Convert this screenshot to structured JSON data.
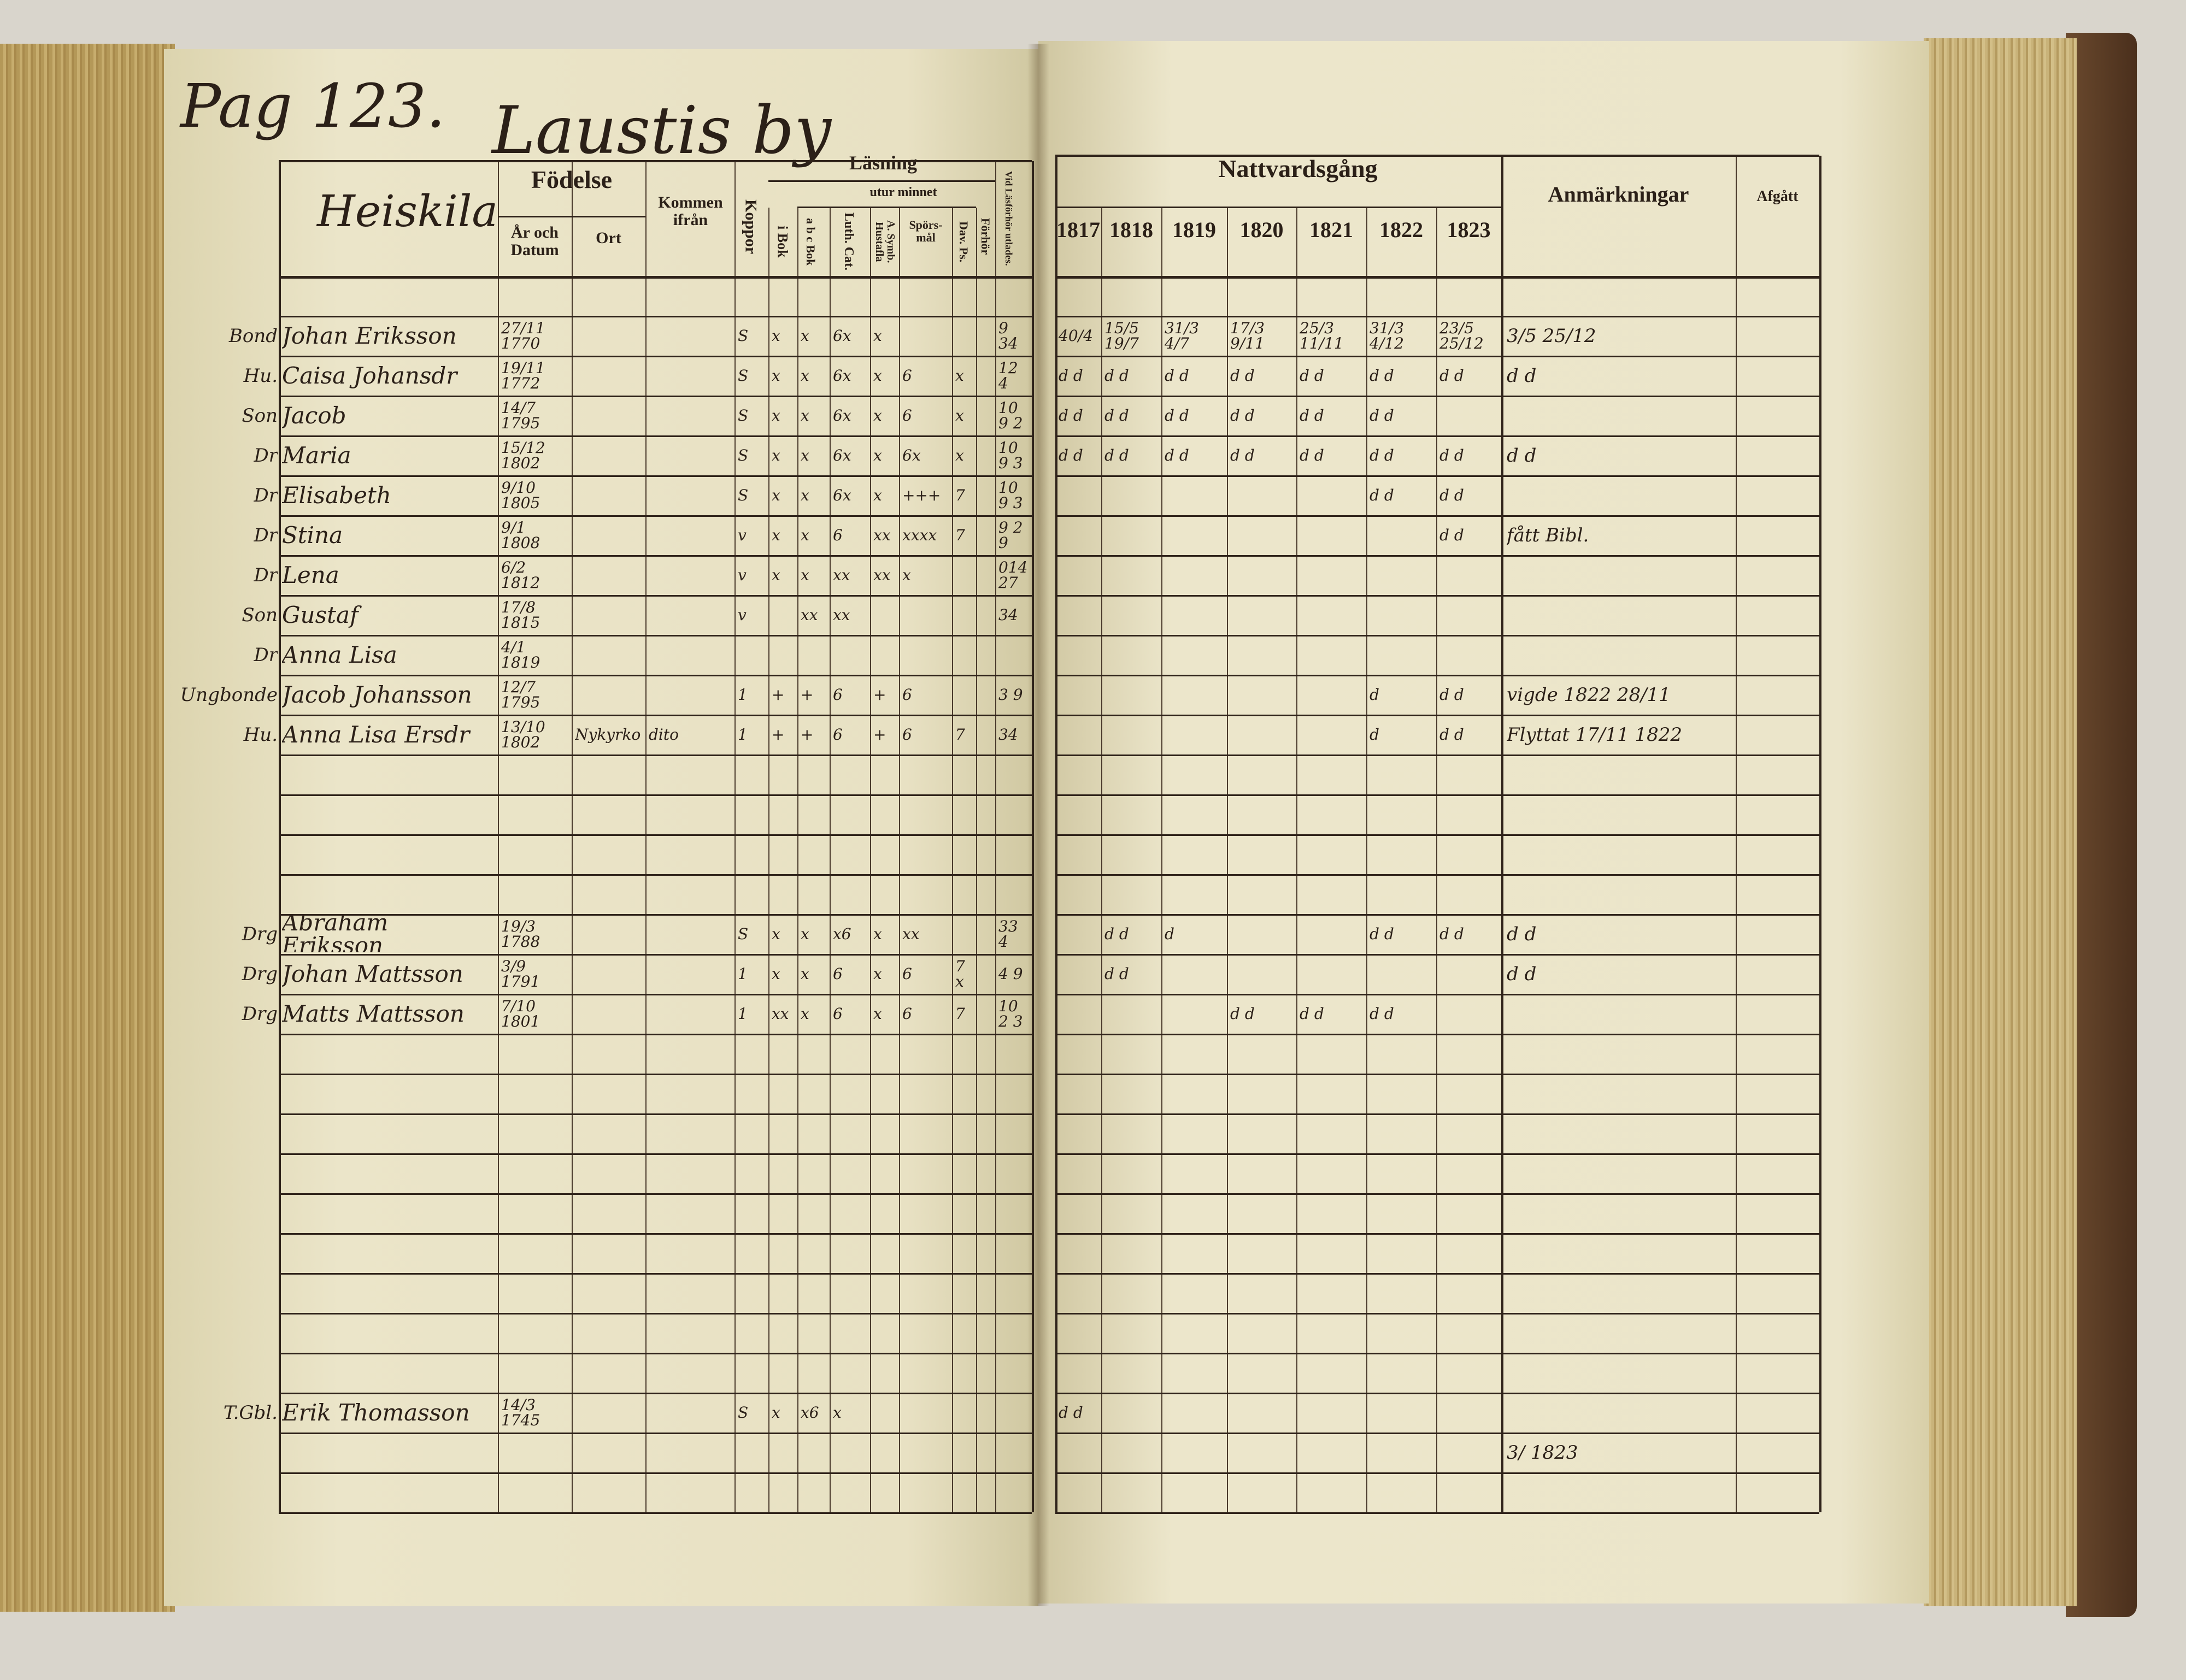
{
  "left_page": {
    "page_label": "Pag 123.",
    "village": "Laustis by",
    "headers": {
      "name": "Heiskila",
      "fodelse": "Födelse",
      "ar_och_datum": "År och Datum",
      "ort": "Ort",
      "kommen": "Kommen ifrån",
      "koppor": "Koppor",
      "lasning": "Läsning",
      "utur_minnet": "utur minnet",
      "i_bok": "i Bok",
      "abc_bok": "a b c Bok",
      "luth_cat": "Luth. Cat.",
      "a_symb": "A. Symb. Hustafla",
      "spors": "Spörs-mål",
      "dav_ps": "Dav. Ps.",
      "forhor": "Förhör",
      "vid": "Vid Läsförhör utlades."
    },
    "rows": [
      {},
      {
        "role": "Bond",
        "name": "Johan Eriksson",
        "date": "27/11 1770",
        "koppor": "S",
        "i_bok": "x",
        "abc_bok": "x",
        "luth_cat": "6x",
        "a_symb": "x",
        "vid": "9 34"
      },
      {
        "role": "Hu.",
        "name": "Caisa Johansdr",
        "date": "19/11 1772",
        "koppor": "S",
        "i_bok": "x",
        "abc_bok": "x",
        "luth_cat": "6x",
        "a_symb": "x",
        "spors": "6",
        "dav_ps": "x",
        "vid": "12 4"
      },
      {
        "role": "Son",
        "name": "Jacob",
        "date": "14/7 1795",
        "koppor": "S",
        "i_bok": "x",
        "abc_bok": "x",
        "luth_cat": "6x",
        "a_symb": "x",
        "spors": "6",
        "dav_ps": "x",
        "vid": "10 9 2"
      },
      {
        "role": "Dr",
        "name": "Maria",
        "date": "15/12 1802",
        "koppor": "S",
        "i_bok": "x",
        "abc_bok": "x",
        "luth_cat": "6x",
        "a_symb": "x",
        "spors": "6x",
        "dav_ps": "x",
        "vid": "10 9 3"
      },
      {
        "role": "Dr",
        "name": "Elisabeth",
        "date": "9/10 1805",
        "koppor": "S",
        "i_bok": "x",
        "abc_bok": "x",
        "luth_cat": "6x",
        "a_symb": "x",
        "spors": "+++",
        "dav_ps": "7",
        "vid": "10 9 3"
      },
      {
        "role": "Dr",
        "name": "Stina",
        "date": "9/1 1808",
        "koppor": "v",
        "i_bok": "x",
        "abc_bok": "x",
        "luth_cat": "6",
        "a_symb": "xx",
        "spors": "xxxx",
        "dav_ps": "7",
        "vid": "9 2 9"
      },
      {
        "role": "Dr",
        "name": "Lena",
        "date": "6/2 1812",
        "koppor": "v",
        "i_bok": "x",
        "abc_bok": "x",
        "luth_cat": "xx",
        "a_symb": "xx",
        "spors": "x",
        "vid": "014 27"
      },
      {
        "role": "Son",
        "name": "Gustaf",
        "date": "17/8 1815",
        "koppor": "v",
        "abc_bok": "xx",
        "luth_cat": "xx",
        "vid": "34"
      },
      {
        "role": "Dr",
        "name": "Anna Lisa",
        "date": "4/1 1819"
      },
      {
        "role": "Ungbonde",
        "name": "Jacob Johansson",
        "date": "12/7 1795",
        "koppor": "1",
        "i_bok": "+",
        "abc_bok": "+",
        "luth_cat": "6",
        "a_symb": "+",
        "spors": "6",
        "vid": "3 9"
      },
      {
        "role": "Hu.",
        "name": "Anna Lisa Ersdr",
        "date": "13/10 1802",
        "ort": "Nykyrko",
        "kommen": "dito",
        "koppor": "1",
        "i_bok": "+",
        "abc_bok": "+",
        "luth_cat": "6",
        "a_symb": "+",
        "spors": "6",
        "dav_ps": "7",
        "vid": "34"
      },
      {},
      {},
      {},
      {},
      {
        "role": "Drg",
        "name": "Abraham Eriksson",
        "date": "19/3 1788",
        "koppor": "S",
        "i_bok": "x",
        "abc_bok": "x",
        "luth_cat": "x6",
        "a_symb": "x",
        "spors": "xx",
        "vid": "33 4"
      },
      {
        "role": "Drg",
        "name": "Johan Mattsson",
        "date": "3/9 1791",
        "koppor": "1",
        "i_bok": "x",
        "abc_bok": "x",
        "luth_cat": "6",
        "a_symb": "x",
        "spors": "6",
        "dav_ps": "7 x",
        "vid": "4 9"
      },
      {
        "role": "Drg",
        "name": "Matts Mattsson",
        "date": "7/10 1801",
        "koppor": "1",
        "i_bok": "xx",
        "abc_bok": "x",
        "luth_cat": "6",
        "a_symb": "x",
        "spors": "6",
        "dav_ps": "7",
        "vid": "10 2 3"
      },
      {},
      {},
      {},
      {},
      {},
      {},
      {},
      {},
      {},
      {
        "role": "T.Gbl.",
        "name": "Erik Thomasson",
        "date": "14/3 1745",
        "koppor": "S",
        "i_bok": "x",
        "abc_bok": "x6",
        "luth_cat": "x"
      },
      {},
      {}
    ]
  },
  "right_page": {
    "headers": {
      "nattvardsgang": "Nattvardsgång",
      "years": [
        "1817",
        "1818",
        "1819",
        "1820",
        "1821",
        "1822",
        "1823"
      ],
      "anmarkningar": "Anmärkningar",
      "afgatt": "Afgått"
    },
    "rows": [
      {},
      {
        "c": [
          "40/4",
          "15/5 19/7",
          "31/3 4/7",
          "17/3 9/11",
          "25/3 11/11",
          "31/3 4/12",
          "23/5 25/12"
        ],
        "anm": "3/5 25/12"
      },
      {
        "c": [
          "d d",
          "d d",
          "d d",
          "d d",
          "d d",
          "d d",
          "d d"
        ],
        "anm": "d d"
      },
      {
        "c": [
          "d d",
          "d d",
          "d d",
          "d d",
          "d d",
          "d d",
          ""
        ]
      },
      {
        "c": [
          "d d",
          "d d",
          "d d",
          "d d",
          "d d",
          "d d",
          "d d"
        ],
        "anm": "d d"
      },
      {
        "c": [
          "",
          "",
          "",
          "",
          "",
          "d d",
          "d d"
        ]
      },
      {
        "c": [
          "",
          "",
          "",
          "",
          "",
          "",
          "d d"
        ],
        "anm": "fått Bibl."
      },
      {},
      {},
      {},
      {
        "c": [
          "",
          "",
          "",
          "",
          "",
          "d",
          "d d"
        ],
        "anm": "vigde 1822 28/11"
      },
      {
        "c": [
          "",
          "",
          "",
          "",
          "",
          "d",
          "d d"
        ],
        "anm": "Flyttat 17/11 1822"
      },
      {},
      {},
      {},
      {},
      {
        "c": [
          "",
          "d d",
          "d",
          "",
          "",
          "d d",
          "d d"
        ],
        "anm": "d d"
      },
      {
        "c": [
          "",
          "d d",
          "",
          "",
          "",
          "",
          ""
        ],
        "anm": "d d"
      },
      {
        "c": [
          "",
          "",
          "",
          "d d",
          "d d",
          "d d",
          ""
        ]
      },
      {},
      {},
      {},
      {},
      {},
      {},
      {},
      {},
      {},
      {
        "c": [
          "d d",
          "",
          "",
          "",
          "",
          "",
          ""
        ]
      },
      {
        "anm": "3/ 1823"
      },
      {}
    ]
  },
  "colors": {
    "paper": "#ebe5ca",
    "ink": "#2b2018",
    "page_edges": "#b49858",
    "cover": "#5a3b24"
  }
}
